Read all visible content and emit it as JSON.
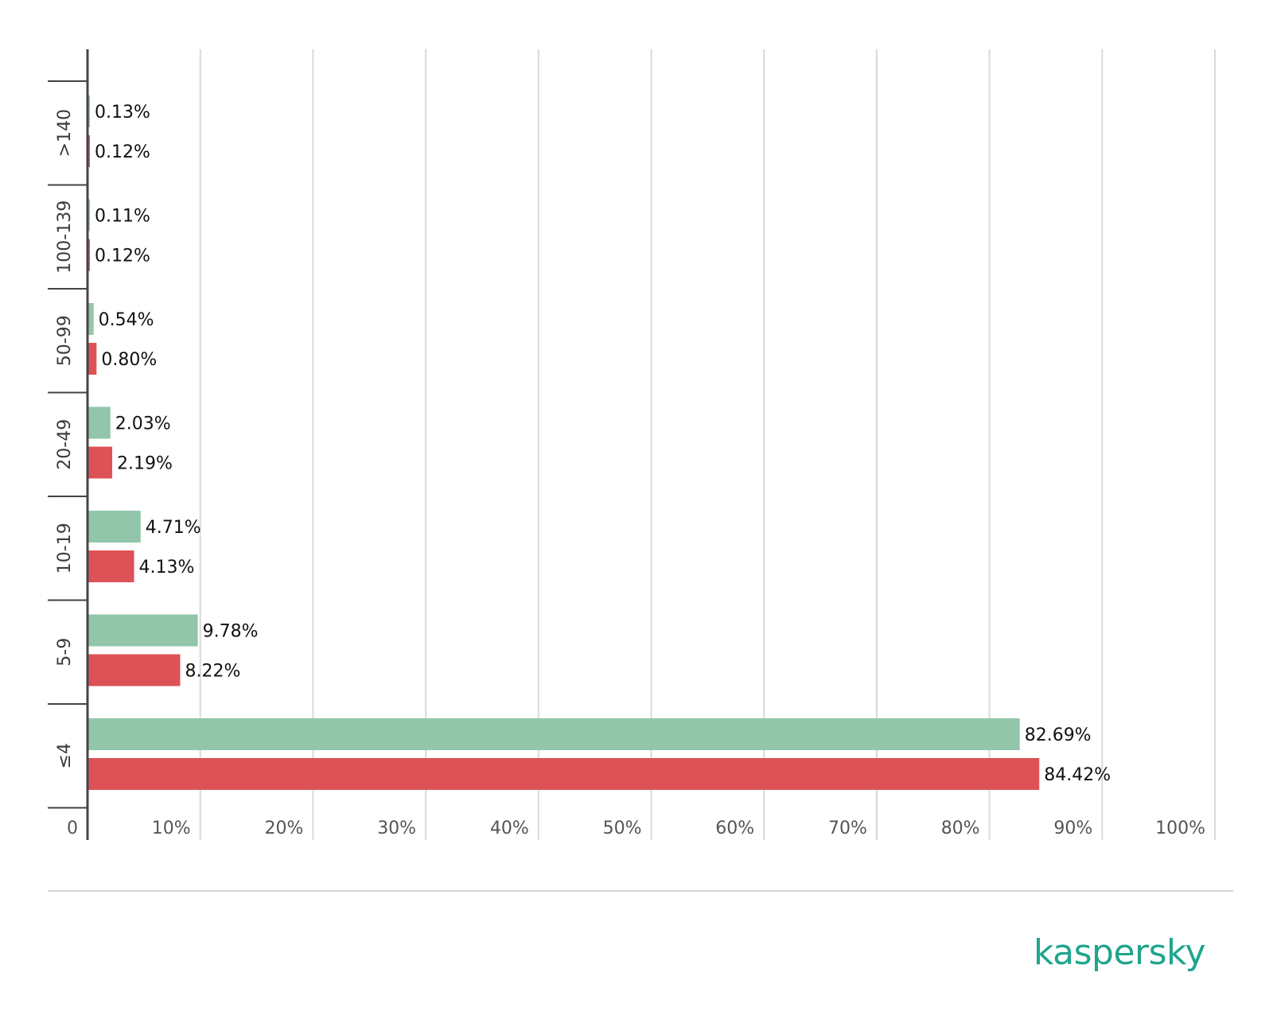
{
  "colors": {
    "series_a": "#92c5a9",
    "series_b": "#dd5257",
    "brand": "#1fa58d"
  },
  "brand": {
    "logo_text": "kaspersky"
  },
  "chart_data": {
    "type": "bar",
    "orientation": "horizontal",
    "categories": [
      "≤4",
      "5-9",
      "10-19",
      "20-49",
      "50-99",
      "100-139",
      ">140"
    ],
    "series": [
      {
        "values": [
          82.69,
          9.78,
          4.71,
          2.03,
          0.54,
          0.11,
          0.13
        ]
      },
      {
        "values": [
          84.42,
          8.22,
          4.13,
          2.19,
          0.8,
          0.12,
          0.12
        ]
      }
    ],
    "data_labels": [
      [
        "82.69%",
        "9.78%",
        "4.71%",
        "2.03%",
        "0.54%",
        "0.11%",
        "0.13%"
      ],
      [
        "84.42%",
        "8.22%",
        "4.13%",
        "2.19%",
        "0.80%",
        "0.12%",
        "0.12%"
      ]
    ],
    "xlim": [
      0,
      100
    ],
    "x_ticks": [
      0,
      10,
      20,
      30,
      40,
      50,
      60,
      70,
      80,
      90,
      100
    ],
    "x_tick_labels": [
      "0",
      "10%",
      "20%",
      "30%",
      "40%",
      "50%",
      "60%",
      "70%",
      "80%",
      "90%",
      "100%"
    ],
    "grid": true,
    "legend": "none"
  }
}
